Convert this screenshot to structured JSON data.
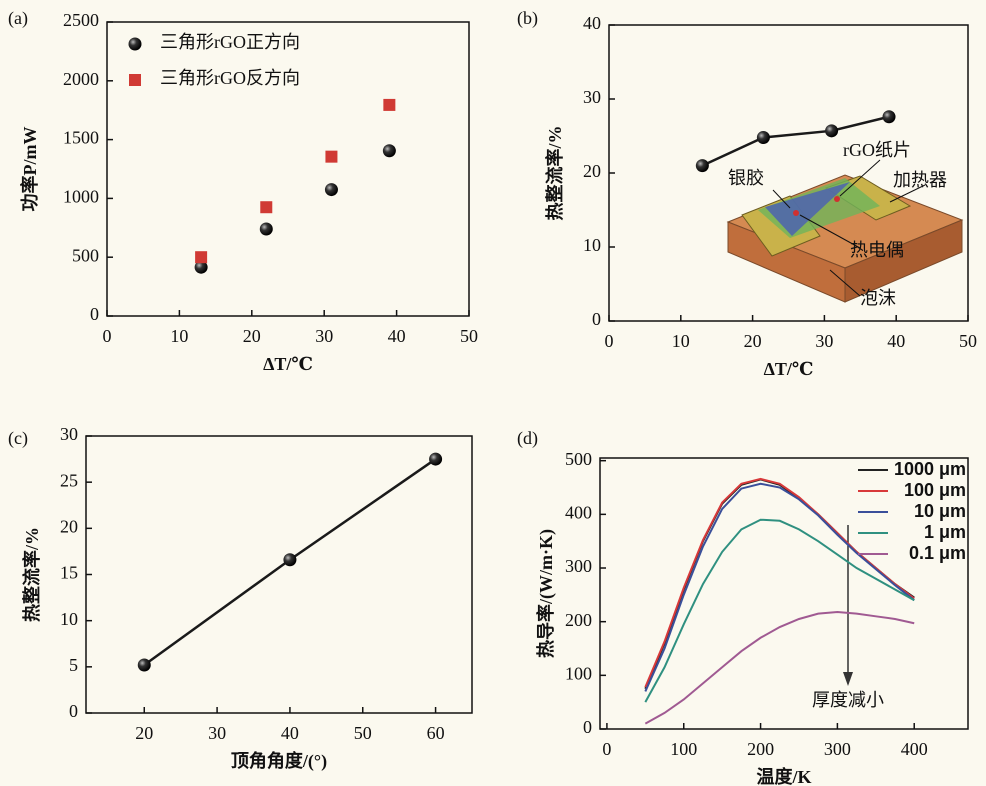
{
  "chart_data": [
    {
      "type": "scatter",
      "panel_label": "(a)",
      "xlabel": "ΔT/℃",
      "ylabel": "功率P/mW",
      "x": [
        13,
        22,
        31,
        39
      ],
      "series": [
        {
          "name": "三角形rGO正方向",
          "color": "#1a1a1a",
          "marker": "circle",
          "values": [
            415,
            740,
            1075,
            1405
          ]
        },
        {
          "name": "三角形rGO反方向",
          "color": "#d03a34",
          "marker": "square",
          "values": [
            500,
            925,
            1355,
            1795
          ]
        }
      ],
      "xlim": [
        0,
        50
      ],
      "xticks": [
        0,
        10,
        20,
        30,
        40,
        50
      ],
      "ylim": [
        0,
        2500
      ],
      "yticks": [
        0,
        500,
        1000,
        1500,
        2000,
        2500
      ],
      "legend": "upper left"
    },
    {
      "type": "line",
      "panel_label": "(b)",
      "xlabel": "ΔT/℃",
      "ylabel": "热整流率/%",
      "x": [
        13,
        21.5,
        31,
        39
      ],
      "series": [
        {
          "color": "#1a1a1a",
          "marker": "circle",
          "values": [
            21,
            24.8,
            25.7,
            27.6
          ]
        }
      ],
      "xlim": [
        0,
        50
      ],
      "xticks": [
        0,
        10,
        20,
        30,
        40,
        50
      ],
      "ylim": [
        0,
        40
      ],
      "yticks": [
        0,
        10,
        20,
        30,
        40
      ],
      "annotations": [
        "银胶",
        "rGO纸片",
        "加热器",
        "热电偶",
        "泡沫"
      ]
    },
    {
      "type": "line",
      "panel_label": "(c)",
      "xlabel": "顶角角度/(°)",
      "ylabel": "热整流率/%",
      "x": [
        20,
        40,
        60
      ],
      "series": [
        {
          "color": "#1a1a1a",
          "marker": "circle",
          "values": [
            5.2,
            16.6,
            27.5
          ]
        }
      ],
      "xlim": [
        12,
        65
      ],
      "xticks": [
        20,
        30,
        40,
        50,
        60
      ],
      "ylim": [
        0,
        30
      ],
      "yticks": [
        0,
        5,
        10,
        15,
        20,
        25,
        30
      ]
    },
    {
      "type": "line",
      "panel_label": "(d)",
      "xlabel": "温度/K",
      "ylabel": "热导率/(W/m·K)",
      "x": [
        50,
        75,
        100,
        125,
        150,
        175,
        200,
        225,
        250,
        275,
        300,
        325,
        350,
        375,
        400
      ],
      "series": [
        {
          "name": "1000 μm",
          "color": "#222222",
          "values": [
            75,
            160,
            260,
            350,
            420,
            455,
            465,
            455,
            430,
            400,
            365,
            330,
            300,
            270,
            245
          ]
        },
        {
          "name": "100 μm",
          "color": "#d8393a",
          "values": [
            78,
            163,
            263,
            352,
            422,
            457,
            466,
            457,
            432,
            400,
            365,
            330,
            300,
            270,
            243
          ]
        },
        {
          "name": "10 μm",
          "color": "#3a4f9a",
          "values": [
            70,
            150,
            250,
            340,
            410,
            448,
            457,
            450,
            428,
            398,
            362,
            328,
            298,
            268,
            240
          ]
        },
        {
          "name": "1 μm",
          "color": "#2f9080",
          "values": [
            50,
            115,
            195,
            270,
            330,
            372,
            390,
            388,
            372,
            350,
            325,
            300,
            280,
            260,
            240
          ]
        },
        {
          "name": "0.1 μm",
          "color": "#a05a92",
          "values": [
            10,
            30,
            55,
            85,
            115,
            145,
            170,
            190,
            205,
            215,
            218,
            215,
            210,
            205,
            197
          ]
        }
      ],
      "xlim": [
        -9,
        470
      ],
      "xticks": [
        0,
        100,
        200,
        300,
        400
      ],
      "ylim": [
        0,
        505
      ],
      "yticks": [
        0,
        100,
        200,
        300,
        400,
        500
      ],
      "legend": "upper right",
      "annotations": [
        "厚度减小"
      ]
    }
  ]
}
